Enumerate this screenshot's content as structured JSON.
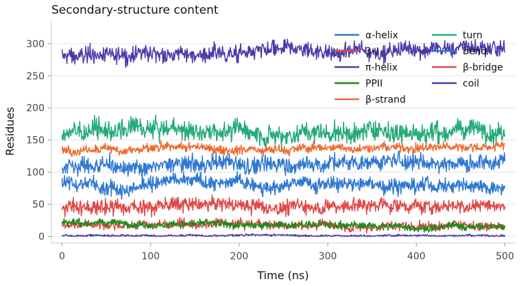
{
  "chart_data": {
    "type": "line",
    "title": "Secondary-structure content",
    "xlabel": "Time (ns)",
    "ylabel": "Residues",
    "xlim": [
      -12,
      512
    ],
    "ylim": [
      -10,
      336
    ],
    "xticks": [
      0,
      100,
      200,
      300,
      400,
      500
    ],
    "yticks": [
      0,
      50,
      100,
      150,
      200,
      250,
      300
    ],
    "grid": true,
    "legend": {
      "placement": "top-right",
      "columns": 2
    },
    "series": [
      {
        "name": "α-helix",
        "color": "#2f78d2",
        "mean_start": 108,
        "mean_end": 118,
        "noise": 9
      },
      {
        "name": "3₁₀",
        "color": "#e04848",
        "mean_start": 48,
        "mean_end": 48,
        "noise": 8
      },
      {
        "name": "π-helix",
        "color": "#4a3aa8",
        "mean_start": 1.5,
        "mean_end": 1.5,
        "noise": 1.2
      },
      {
        "name": "PPII",
        "color": "#1a8c1a",
        "mean_start": 22,
        "mean_end": 14,
        "noise": 4
      },
      {
        "name": "β-strand",
        "color": "#ee6a30",
        "mean_start": 135,
        "mean_end": 140,
        "noise": 5
      },
      {
        "name": "turn",
        "color": "#22aa77",
        "mean_start": 163,
        "mean_end": 167,
        "noise": 11
      },
      {
        "name": "bend",
        "color": "#2f78d2",
        "mean_start": 83,
        "mean_end": 82,
        "noise": 8
      },
      {
        "name": "β-bridge",
        "color": "#e04848",
        "mean_start": 18,
        "mean_end": 18,
        "noise": 5
      },
      {
        "name": "coil",
        "color": "#4a3aa8",
        "mean_start": 280,
        "mean_end": 294,
        "noise": 9
      }
    ]
  }
}
